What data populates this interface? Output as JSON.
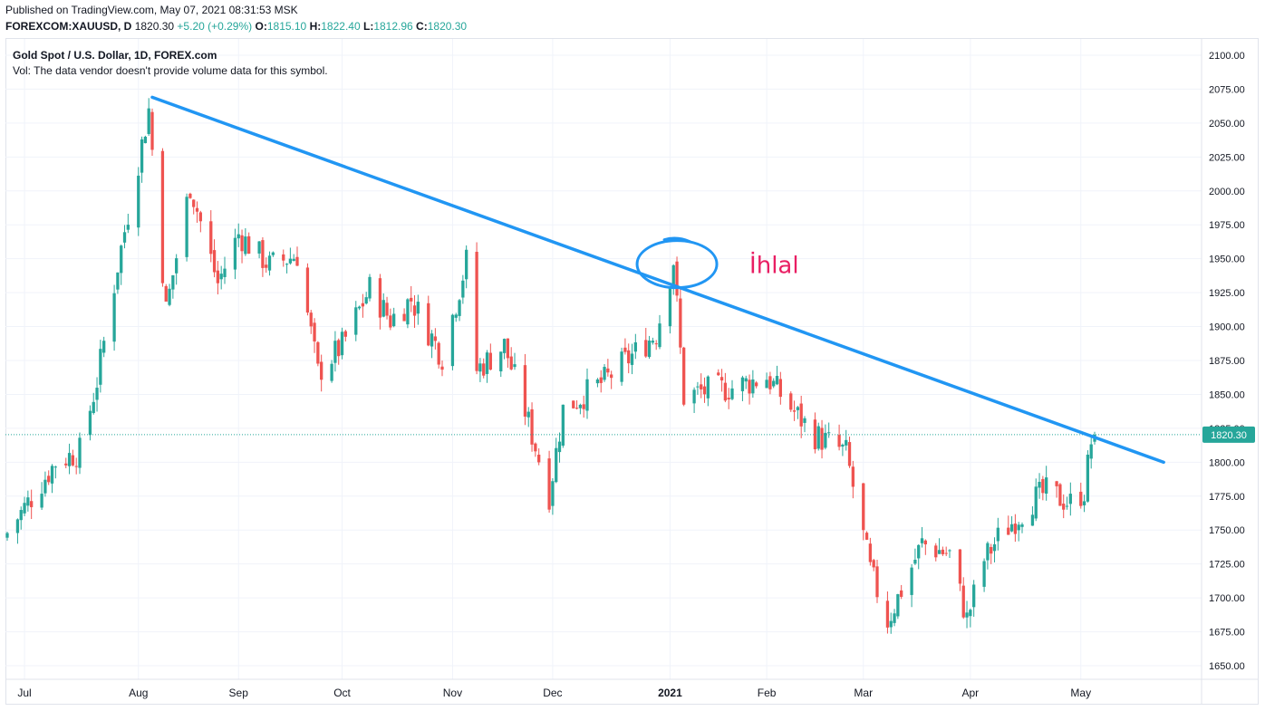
{
  "header": {
    "published": "Published on TradingView.com, May 07, 2021 08:31:53 MSK",
    "symbol": "FOREXCOM:XAUUSD, D",
    "last": "1820.30",
    "change": "+5.20 (+0.29%)",
    "o_label": "O:",
    "o_value": "1815.10",
    "h_label": "H:",
    "h_value": "1822.40",
    "l_label": "L:",
    "l_value": "1812.96",
    "c_label": "C:",
    "c_value": "1820.30"
  },
  "legend": {
    "title": "Gold Spot / U.S. Dollar, 1D, FOREX.com",
    "volume_note": "Vol: The data vendor doesn't provide volume data for this symbol."
  },
  "colors": {
    "up": "#26a69a",
    "down": "#ef5350",
    "trendline": "#2196f3",
    "annotation": "#e91e63",
    "price_tag": "#26a69a"
  },
  "chart_data": {
    "type": "candlestick",
    "ylim": [
      1640,
      2112
    ],
    "yticks": [
      1650,
      1675,
      1700,
      1725,
      1750,
      1775,
      1800,
      1825,
      1850,
      1875,
      1900,
      1925,
      1950,
      1975,
      2000,
      2025,
      2050,
      2075,
      2100
    ],
    "xticks": [
      "Jul",
      "Aug",
      "Sep",
      "Oct",
      "Nov",
      "Dec",
      "2021",
      "Feb",
      "Mar",
      "Apr",
      "May"
    ],
    "last_price": 1820.3,
    "last_price_label": "1820.30",
    "trendline": {
      "from": {
        "date": "2020-08-07",
        "price": 2069
      },
      "to": {
        "date": "2021-05-27",
        "price": 1800
      }
    },
    "annotation": {
      "text": "İhlal",
      "date": "2021-01-06",
      "price": 1946
    },
    "anchors": [
      [
        "2020-06-26",
        1748
      ],
      [
        "2020-07-10",
        1800
      ],
      [
        "2020-07-17",
        1808
      ],
      [
        "2020-07-22",
        1860
      ],
      [
        "2020-07-28",
        1945
      ],
      [
        "2020-08-06",
        2060
      ],
      [
        "2020-08-11",
        1912
      ],
      [
        "2020-08-18",
        2004
      ],
      [
        "2020-08-26",
        1932
      ],
      [
        "2020-09-01",
        1968
      ],
      [
        "2020-09-10",
        1945
      ],
      [
        "2020-09-18",
        1953
      ],
      [
        "2020-09-24",
        1866
      ],
      [
        "2020-10-01",
        1886
      ],
      [
        "2020-10-09",
        1928
      ],
      [
        "2020-10-15",
        1905
      ],
      [
        "2020-10-21",
        1920
      ],
      [
        "2020-10-30",
        1878
      ],
      [
        "2020-11-06",
        1948
      ],
      [
        "2020-11-09",
        1868
      ],
      [
        "2020-11-17",
        1886
      ],
      [
        "2020-11-23",
        1838
      ],
      [
        "2020-11-30",
        1776
      ],
      [
        "2020-12-04",
        1839
      ],
      [
        "2020-12-16",
        1860
      ],
      [
        "2020-12-22",
        1874
      ],
      [
        "2020-12-31",
        1895
      ],
      [
        "2021-01-05",
        1949
      ],
      [
        "2021-01-08",
        1848
      ],
      [
        "2021-01-13",
        1852
      ],
      [
        "2021-01-22",
        1855
      ],
      [
        "2021-02-01",
        1863
      ],
      [
        "2021-02-09",
        1837
      ],
      [
        "2021-02-15",
        1820
      ],
      [
        "2021-02-24",
        1807
      ],
      [
        "2021-03-03",
        1720
      ],
      [
        "2021-03-08",
        1683
      ],
      [
        "2021-03-18",
        1740
      ],
      [
        "2021-03-26",
        1732
      ],
      [
        "2021-03-31",
        1684
      ],
      [
        "2021-04-05",
        1728
      ],
      [
        "2021-04-09",
        1744
      ],
      [
        "2021-04-19",
        1772
      ],
      [
        "2021-04-23",
        1778
      ],
      [
        "2021-04-30",
        1770
      ],
      [
        "2021-05-04",
        1779
      ],
      [
        "2021-05-06",
        1815
      ],
      [
        "2021-05-07",
        1820.3
      ]
    ]
  }
}
